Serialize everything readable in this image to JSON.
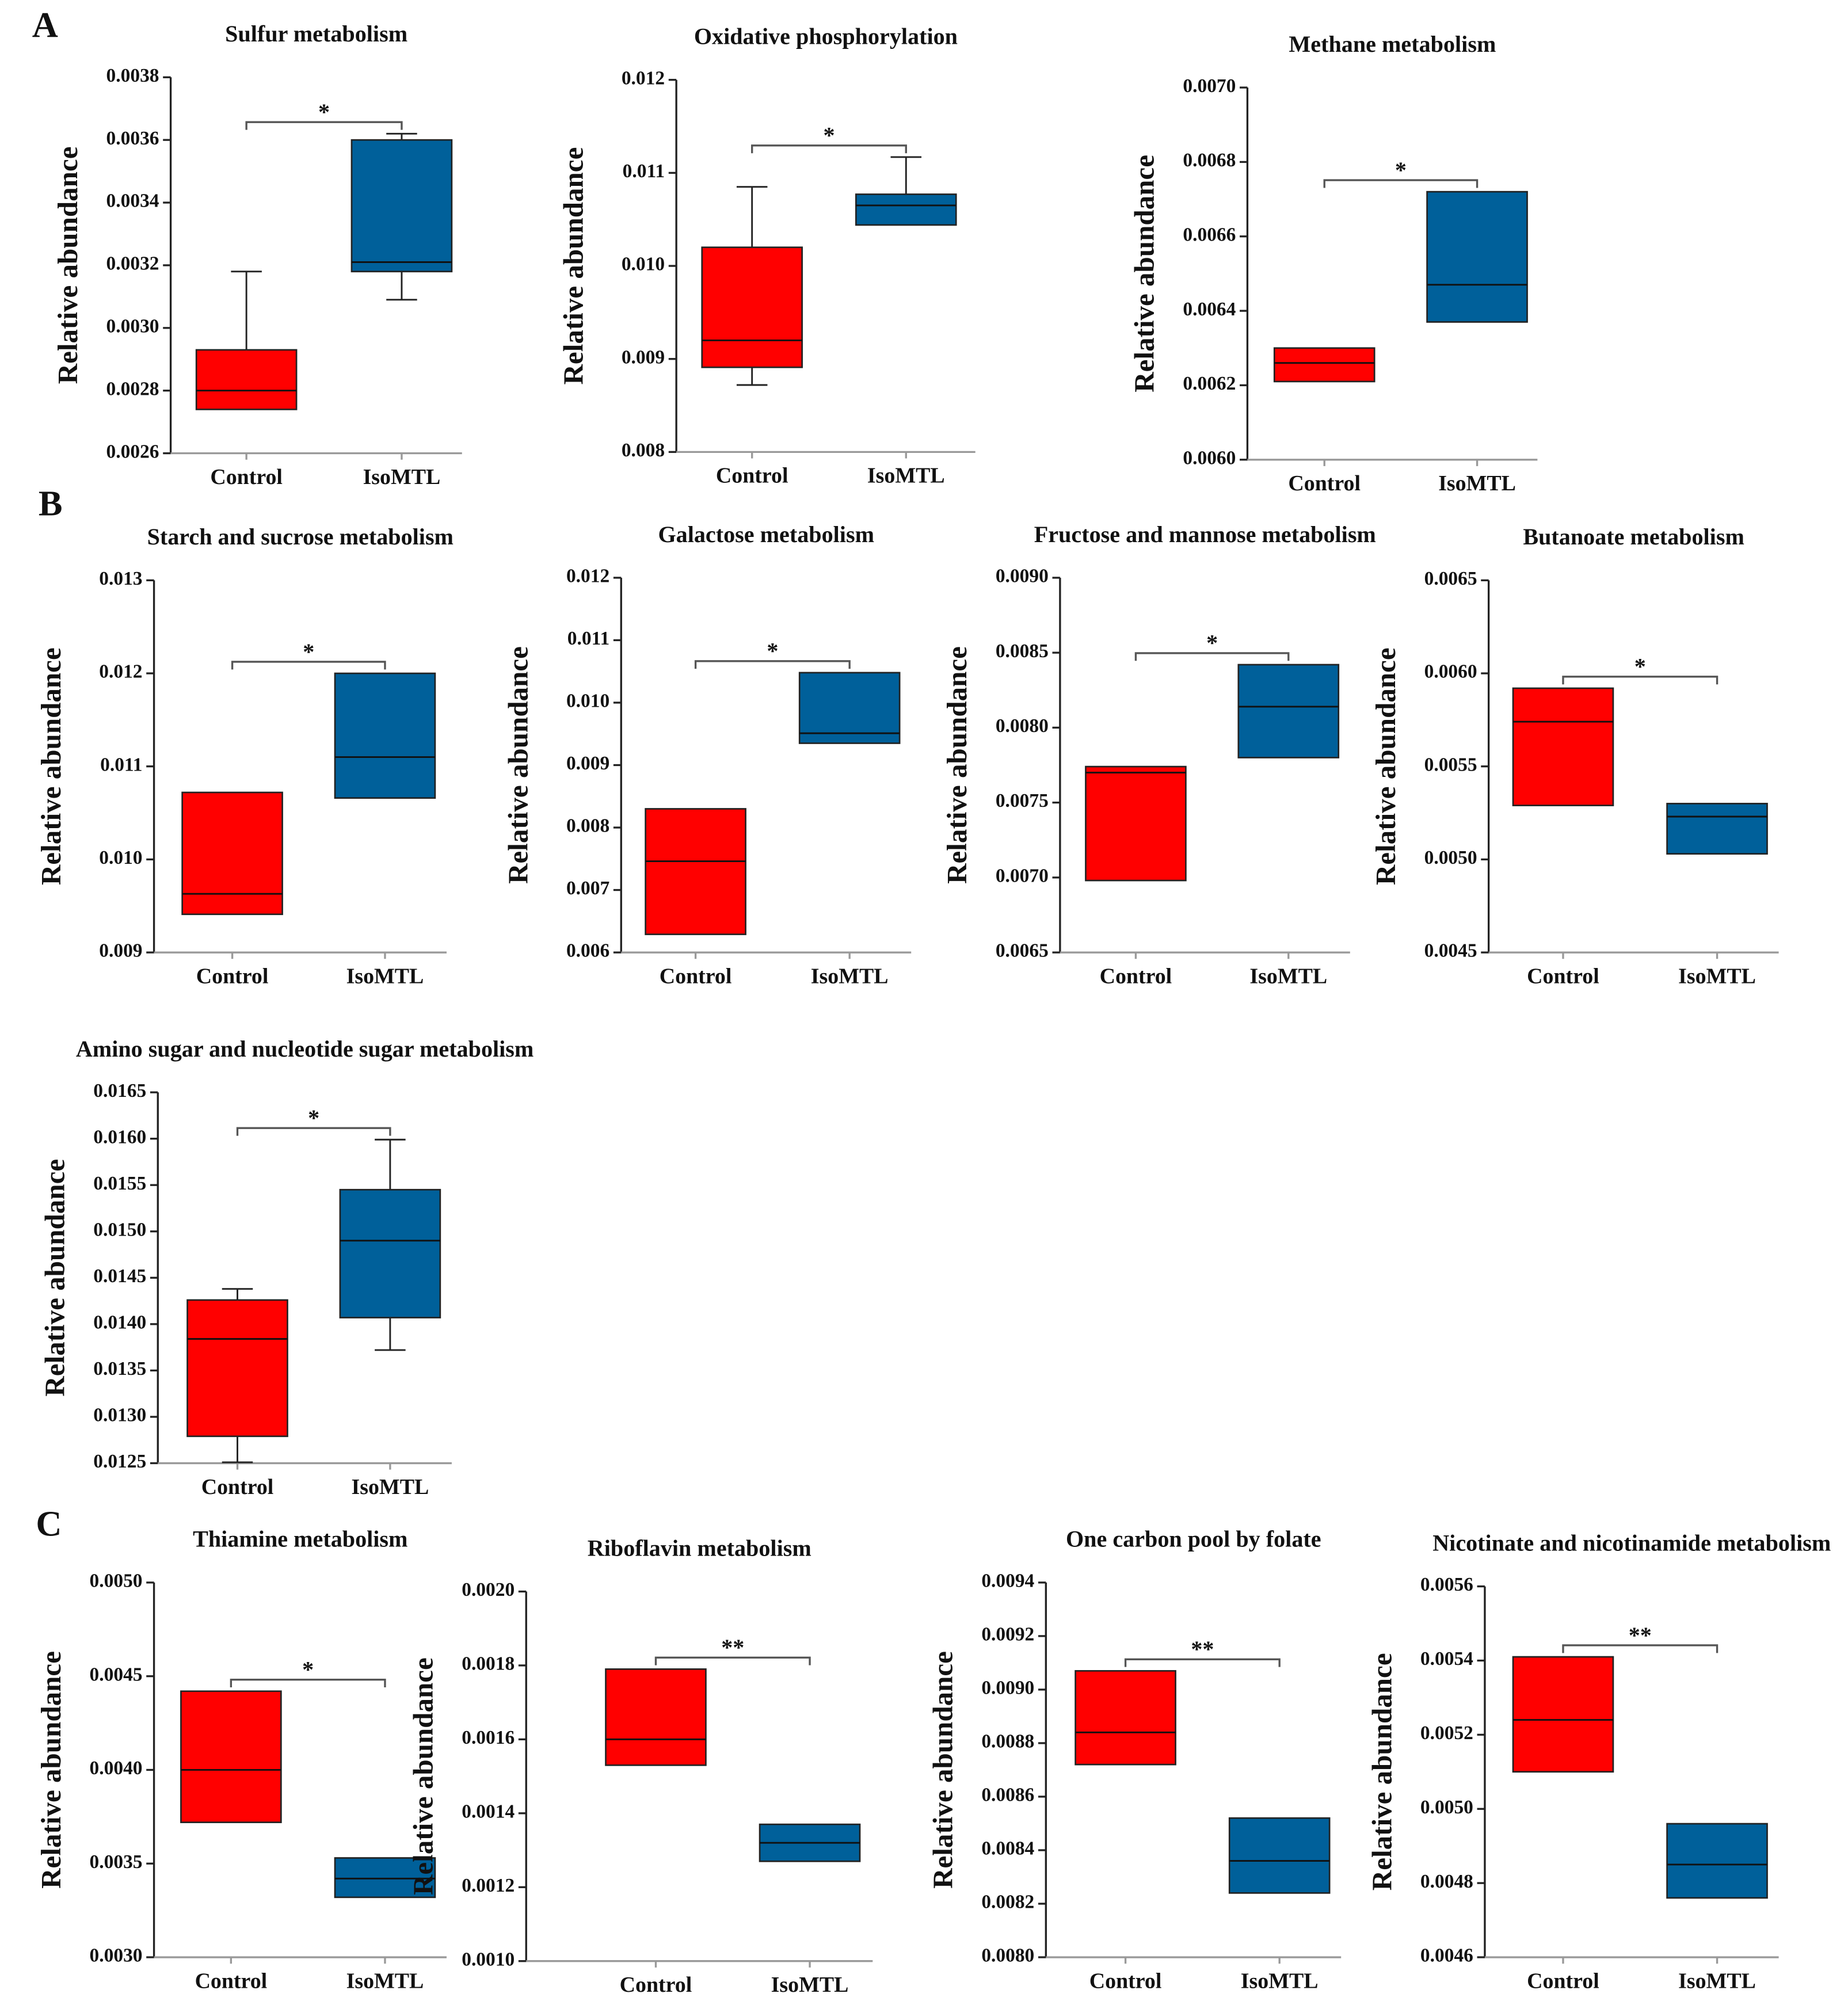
{
  "panel_labels": [
    "A",
    "B",
    "C"
  ],
  "chart_data": [
    {
      "type": "box",
      "title": "Sulfur metabolism",
      "y_label": "Relative abundance",
      "categories": [
        "Control",
        "IsoMTL"
      ],
      "ylim": [
        0.0026,
        0.0038
      ],
      "yticks": [
        0.0026,
        0.0028,
        {
          "value": 0.003,
          "label": "0.0030"
        },
        0.0032,
        0.0034,
        0.0036,
        0.0038
      ],
      "boxes": [
        {
          "color": "#ff0000",
          "q1": 0.00274,
          "median": 0.0028,
          "q3": 0.00293,
          "whisker_high": 0.00318
        },
        {
          "color": "#00609a",
          "whisker_low": 0.00309,
          "q1": 0.00318,
          "median": 0.00321,
          "q3": 0.0036,
          "whisker_high": 0.00362
        }
      ],
      "significance": "*"
    },
    {
      "type": "box",
      "title": "Oxidative phosphorylation",
      "y_label": "Relative abundance",
      "categories": [
        "Control",
        "IsoMTL"
      ],
      "ylim": [
        0.008,
        0.012
      ],
      "yticks": [
        0.008,
        0.009,
        {
          "value": 0.01,
          "label": "0.010"
        },
        0.011,
        0.012
      ],
      "boxes": [
        {
          "color": "#ff0000",
          "whisker_low": 0.00872,
          "q1": 0.00891,
          "median": 0.0092,
          "q3": 0.0102,
          "whisker_high": 0.01085
        },
        {
          "color": "#00609a",
          "q1": 0.01044,
          "median": 0.01065,
          "q3": 0.01077,
          "whisker_high": 0.01117
        }
      ],
      "significance": "*"
    },
    {
      "type": "box",
      "title": "Methane metabolism",
      "y_label": "Relative abundance",
      "categories": [
        "Control",
        "IsoMTL"
      ],
      "ylim": [
        0.006,
        0.007
      ],
      "yticks": [
        {
          "value": 0.006,
          "label": "0.0060"
        },
        0.0062,
        0.0064,
        0.0066,
        0.0068,
        {
          "value": 0.007,
          "label": "0.0070"
        }
      ],
      "boxes": [
        {
          "color": "#ff0000",
          "q1": 0.00621,
          "median": 0.00626,
          "q3": 0.0063
        },
        {
          "color": "#00609a",
          "q1": 0.00637,
          "median": 0.00647,
          "q3": 0.00672
        }
      ],
      "significance": "*"
    },
    {
      "type": "box",
      "title": "Starch and sucrose metabolism",
      "y_label": "Relative abundance",
      "categories": [
        "Control",
        "IsoMTL"
      ],
      "ylim": [
        0.009,
        0.013
      ],
      "yticks": [
        0.009,
        {
          "value": 0.01,
          "label": "0.010"
        },
        0.011,
        0.012,
        0.013
      ],
      "boxes": [
        {
          "color": "#ff0000",
          "q1": 0.00941,
          "median": 0.00963,
          "q3": 0.01072
        },
        {
          "color": "#00609a",
          "q1": 0.01066,
          "median": 0.0111,
          "q3": 0.012
        }
      ],
      "significance": "*"
    },
    {
      "type": "box",
      "title": "Galactose metabolism",
      "y_label": "Relative abundance",
      "categories": [
        "Control",
        "IsoMTL"
      ],
      "ylim": [
        0.006,
        0.012
      ],
      "yticks": [
        0.006,
        0.007,
        0.008,
        0.009,
        {
          "value": 0.01,
          "label": "0.010"
        },
        0.011,
        0.012
      ],
      "boxes": [
        {
          "color": "#ff0000",
          "q1": 0.00629,
          "median": 0.00746,
          "q3": 0.0083
        },
        {
          "color": "#00609a",
          "q1": 0.00935,
          "median": 0.00951,
          "q3": 0.01048
        }
      ],
      "significance": "*"
    },
    {
      "type": "box",
      "title": "Fructose and mannose metabolism",
      "y_label": "Relative abundance",
      "categories": [
        "Control",
        "IsoMTL"
      ],
      "ylim": [
        0.0065,
        0.009
      ],
      "yticks": [
        0.0065,
        {
          "value": 0.007,
          "label": "0.0070"
        },
        0.0075,
        {
          "value": 0.008,
          "label": "0.0080"
        },
        0.0085,
        {
          "value": 0.009,
          "label": "0.0090"
        }
      ],
      "boxes": [
        {
          "color": "#ff0000",
          "q1": 0.00698,
          "median": 0.0077,
          "q3": 0.00774
        },
        {
          "color": "#00609a",
          "q1": 0.0078,
          "median": 0.00814,
          "q3": 0.00842
        }
      ],
      "significance": "*"
    },
    {
      "type": "box",
      "title": "Butanoate metabolism",
      "y_label": "Relative abundance",
      "categories": [
        "Control",
        "IsoMTL"
      ],
      "ylim": [
        0.0045,
        0.0065
      ],
      "yticks": [
        0.0045,
        {
          "value": 0.005,
          "label": "0.0050"
        },
        0.0055,
        {
          "value": 0.006,
          "label": "0.0060"
        },
        0.0065
      ],
      "boxes": [
        {
          "color": "#ff0000",
          "q1": 0.00529,
          "median": 0.00574,
          "q3": 0.00592
        },
        {
          "color": "#00609a",
          "q1": 0.00503,
          "median": 0.00523,
          "q3": 0.0053
        }
      ],
      "significance": "*"
    },
    {
      "type": "box",
      "title": "Amino sugar and nucleotide sugar metabolism",
      "y_label": "Relative abundance",
      "categories": [
        "Control",
        "IsoMTL"
      ],
      "ylim": [
        0.0125,
        0.0165
      ],
      "yticks": [
        0.0125,
        {
          "value": 0.013,
          "label": "0.0130"
        },
        0.0135,
        {
          "value": 0.014,
          "label": "0.0140"
        },
        0.0145,
        {
          "value": 0.015,
          "label": "0.0150"
        },
        0.0155,
        {
          "value": 0.016,
          "label": "0.0160"
        },
        0.0165
      ],
      "boxes": [
        {
          "color": "#ff0000",
          "whisker_low": 0.01251,
          "q1": 0.01279,
          "median": 0.01384,
          "q3": 0.01426,
          "whisker_high": 0.01438
        },
        {
          "color": "#00609a",
          "whisker_low": 0.01372,
          "q1": 0.01407,
          "median": 0.0149,
          "q3": 0.01545,
          "whisker_high": 0.01599
        }
      ],
      "significance": "*"
    },
    {
      "type": "box",
      "title": "Thiamine metabolism",
      "y_label": "Relative abundance",
      "categories": [
        "Control",
        "IsoMTL"
      ],
      "ylim": [
        0.003,
        0.005
      ],
      "yticks": [
        {
          "value": 0.003,
          "label": "0.0030"
        },
        0.0035,
        {
          "value": 0.004,
          "label": "0.0040"
        },
        0.0045,
        {
          "value": 0.005,
          "label": "0.0050"
        }
      ],
      "boxes": [
        {
          "color": "#ff0000",
          "q1": 0.00372,
          "median": 0.004,
          "q3": 0.00442
        },
        {
          "color": "#00609a",
          "q1": 0.00332,
          "median": 0.00342,
          "q3": 0.00353
        }
      ],
      "significance": "*"
    },
    {
      "type": "box",
      "title": "Riboflavin metabolism",
      "y_label": "Relative abundance",
      "categories": [
        "Control",
        "IsoMTL"
      ],
      "ylim": [
        0.001,
        0.002
      ],
      "yticks": [
        {
          "value": 0.001,
          "label": "0.0010"
        },
        0.0012,
        0.0014,
        0.0016,
        0.0018,
        {
          "value": 0.002,
          "label": "0.0020"
        }
      ],
      "boxes": [
        {
          "color": "#ff0000",
          "q1": 0.00153,
          "median": 0.0016,
          "q3": 0.00179
        },
        {
          "color": "#00609a",
          "q1": 0.00127,
          "median": 0.00132,
          "q3": 0.00137
        }
      ],
      "significance": "**"
    },
    {
      "type": "box",
      "title": "One carbon pool by folate",
      "y_label": "Relative abundance",
      "categories": [
        "Control",
        "IsoMTL"
      ],
      "ylim": [
        0.008,
        0.0094
      ],
      "yticks": [
        {
          "value": 0.008,
          "label": "0.0080"
        },
        0.0082,
        0.0084,
        0.0086,
        0.0088,
        {
          "value": 0.009,
          "label": "0.0090"
        },
        0.0092,
        0.0094
      ],
      "boxes": [
        {
          "color": "#ff0000",
          "q1": 0.00872,
          "median": 0.00884,
          "q3": 0.00907
        },
        {
          "color": "#00609a",
          "q1": 0.00824,
          "median": 0.00836,
          "q3": 0.00852
        }
      ],
      "significance": "**"
    },
    {
      "type": "box",
      "title": "Nicotinate and nicotinamide metabolism",
      "y_label": "Relative abundance",
      "categories": [
        "Control",
        "IsoMTL"
      ],
      "ylim": [
        0.0046,
        0.0056
      ],
      "yticks": [
        0.0046,
        0.0048,
        {
          "value": 0.005,
          "label": "0.0050"
        },
        0.0052,
        0.0054,
        0.0056
      ],
      "boxes": [
        {
          "color": "#ff0000",
          "q1": 0.0051,
          "median": 0.00524,
          "q3": 0.00541
        },
        {
          "color": "#00609a",
          "q1": 0.00476,
          "median": 0.00485,
          "q3": 0.00496
        }
      ],
      "significance": "**"
    }
  ]
}
